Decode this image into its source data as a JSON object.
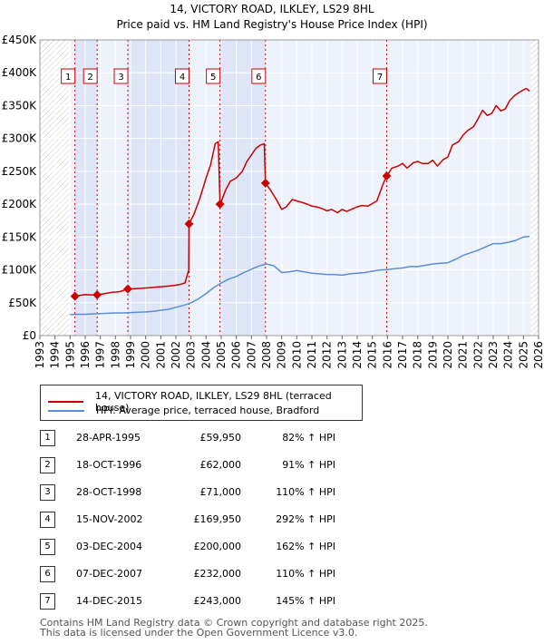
{
  "chart_data": {
    "type": "line",
    "title": "14, VICTORY ROAD, ILKLEY, LS29 8HL",
    "subtitle": "Price paid vs. HM Land Registry's House Price Index (HPI)",
    "xlim": [
      1993,
      2026
    ],
    "ylim": [
      0,
      450000
    ],
    "y_ticks": [
      0,
      50000,
      100000,
      150000,
      200000,
      250000,
      300000,
      350000,
      400000,
      450000
    ],
    "y_tick_labels": [
      "£0",
      "£50K",
      "£100K",
      "£150K",
      "£200K",
      "£250K",
      "£300K",
      "£350K",
      "£400K",
      "£450K"
    ],
    "x_ticks": [
      1993,
      1994,
      1995,
      1996,
      1997,
      1998,
      1999,
      2000,
      2001,
      2002,
      2003,
      2004,
      2005,
      2006,
      2007,
      2008,
      2009,
      2010,
      2011,
      2012,
      2013,
      2014,
      2015,
      2016,
      2017,
      2018,
      2019,
      2020,
      2021,
      2022,
      2023,
      2024,
      2025,
      2026
    ],
    "x_tick_labels": [
      "1993",
      "1994",
      "1995",
      "1996",
      "1997",
      "1998",
      "1999",
      "2000",
      "2001",
      "2002",
      "2003",
      "2004",
      "2005",
      "2006",
      "2007",
      "2008",
      "2009",
      "2010",
      "2011",
      "2012",
      "2013",
      "2014",
      "2015",
      "2016",
      "2017",
      "2018",
      "2019",
      "2020",
      "2021",
      "2022",
      "2023",
      "2024",
      "2025",
      "2026"
    ],
    "data_start": 1995.0,
    "data_end": 2025.5,
    "series": [
      {
        "name": "14, VICTORY ROAD, ILKLEY, LS29 8HL (terraced house)",
        "color": "#cc0000",
        "x": [
          1995.32,
          1995.6,
          1996.0,
          1996.4,
          1996.79,
          1997.3,
          1997.8,
          1998.3,
          1998.82,
          1999.3,
          1999.8,
          2000.3,
          2000.8,
          2001.3,
          2001.8,
          2002.3,
          2002.6,
          2002.85,
          2002.87,
          2003.2,
          2003.6,
          2004.0,
          2004.3,
          2004.6,
          2004.8,
          2004.92,
          2005.1,
          2005.3,
          2005.6,
          2006.0,
          2006.4,
          2006.7,
          2007.0,
          2007.3,
          2007.6,
          2007.85,
          2007.93,
          2008.3,
          2008.7,
          2009.0,
          2009.3,
          2009.7,
          2010.0,
          2010.3,
          2010.7,
          2011.0,
          2011.3,
          2011.7,
          2012.0,
          2012.3,
          2012.7,
          2013.0,
          2013.3,
          2013.7,
          2014.0,
          2014.3,
          2014.7,
          2015.0,
          2015.3,
          2015.7,
          2015.95,
          2016.3,
          2016.7,
          2017.0,
          2017.3,
          2017.7,
          2018.0,
          2018.3,
          2018.7,
          2019.0,
          2019.3,
          2019.7,
          2020.0,
          2020.3,
          2020.7,
          2021.0,
          2021.3,
          2021.7,
          2022.0,
          2022.3,
          2022.6,
          2022.9,
          2023.2,
          2023.5,
          2023.8,
          2024.1,
          2024.4,
          2024.7,
          2025.0,
          2025.2,
          2025.4
        ],
        "values": [
          59950,
          61000,
          62500,
          62000,
          62000,
          64000,
          66000,
          67000,
          71000,
          71500,
          72000,
          73000,
          74000,
          75000,
          76000,
          78000,
          80000,
          100000,
          169950,
          185000,
          210000,
          240000,
          260000,
          292000,
          295000,
          200000,
          210000,
          222000,
          235000,
          240000,
          250000,
          265000,
          275000,
          285000,
          290000,
          292000,
          232000,
          220000,
          205000,
          192000,
          196000,
          207000,
          205000,
          203000,
          200000,
          197000,
          196000,
          193000,
          190000,
          192000,
          187000,
          192000,
          189000,
          193000,
          196000,
          198000,
          197000,
          201000,
          205000,
          230000,
          243000,
          255000,
          258000,
          262000,
          255000,
          263000,
          265000,
          262000,
          262000,
          267000,
          258000,
          268000,
          272000,
          290000,
          295000,
          305000,
          312000,
          318000,
          330000,
          343000,
          335000,
          338000,
          350000,
          342000,
          345000,
          358000,
          365000,
          370000,
          374000,
          376000,
          372000
        ]
      },
      {
        "name": "HPI: Average price, terraced house, Bradford",
        "color": "#5b8ed6",
        "x": [
          1995.0,
          1995.5,
          1996.0,
          1996.5,
          1997.0,
          1997.5,
          1998.0,
          1998.5,
          1999.0,
          1999.5,
          2000.0,
          2000.5,
          2001.0,
          2001.5,
          2002.0,
          2002.5,
          2003.0,
          2003.5,
          2004.0,
          2004.5,
          2005.0,
          2005.5,
          2006.0,
          2006.5,
          2007.0,
          2007.5,
          2008.0,
          2008.5,
          2009.0,
          2009.5,
          2010.0,
          2010.5,
          2011.0,
          2011.5,
          2012.0,
          2012.5,
          2013.0,
          2013.5,
          2014.0,
          2014.5,
          2015.0,
          2015.5,
          2016.0,
          2016.5,
          2017.0,
          2017.5,
          2018.0,
          2018.5,
          2019.0,
          2019.5,
          2020.0,
          2020.5,
          2021.0,
          2021.5,
          2022.0,
          2022.5,
          2023.0,
          2023.5,
          2024.0,
          2024.5,
          2025.0,
          2025.4
        ],
        "values": [
          32000,
          32500,
          32500,
          33000,
          33500,
          34000,
          34500,
          34500,
          35000,
          35500,
          36000,
          37000,
          38500,
          40000,
          43000,
          46000,
          50000,
          56000,
          64000,
          73000,
          80000,
          86000,
          90000,
          96000,
          101000,
          106000,
          109000,
          106000,
          96000,
          97000,
          99000,
          97000,
          95000,
          94000,
          93000,
          93000,
          92000,
          94000,
          95000,
          96000,
          98000,
          100000,
          100500,
          102000,
          103000,
          105000,
          105000,
          107000,
          109000,
          110000,
          111000,
          116000,
          122000,
          126000,
          130000,
          135000,
          140000,
          140000,
          142000,
          145000,
          150000,
          151000
        ]
      }
    ],
    "sales": [
      {
        "x": 1995.32,
        "value": 59950,
        "label": "1"
      },
      {
        "x": 1996.79,
        "value": 62000,
        "label": "2"
      },
      {
        "x": 1998.82,
        "value": 71000,
        "label": "3"
      },
      {
        "x": 2002.87,
        "value": 169950,
        "label": "4"
      },
      {
        "x": 2004.92,
        "value": 200000,
        "label": "5"
      },
      {
        "x": 2007.93,
        "value": 232000,
        "label": "6"
      },
      {
        "x": 2015.95,
        "value": 243000,
        "label": "7"
      }
    ]
  },
  "legend": {
    "property_label": "14, VICTORY ROAD, ILKLEY, LS29 8HL (terraced house)",
    "hpi_label": "HPI: Average price, terraced house, Bradford",
    "property_color": "#cc0000",
    "hpi_color": "#5b8ed6"
  },
  "sales_table": [
    {
      "num": "1",
      "date": "28-APR-1995",
      "price": "£59,950",
      "hpi": "82% ↑ HPI"
    },
    {
      "num": "2",
      "date": "18-OCT-1996",
      "price": "£62,000",
      "hpi": "91% ↑ HPI"
    },
    {
      "num": "3",
      "date": "28-OCT-1998",
      "price": "£71,000",
      "hpi": "110% ↑ HPI"
    },
    {
      "num": "4",
      "date": "15-NOV-2002",
      "price": "£169,950",
      "hpi": "292% ↑ HPI"
    },
    {
      "num": "5",
      "date": "03-DEC-2004",
      "price": "£200,000",
      "hpi": "162% ↑ HPI"
    },
    {
      "num": "6",
      "date": "07-DEC-2007",
      "price": "£232,000",
      "hpi": "110% ↑ HPI"
    },
    {
      "num": "7",
      "date": "14-DEC-2015",
      "price": "£243,000",
      "hpi": "145% ↑ HPI"
    }
  ],
  "footer": {
    "line1": "Contains HM Land Registry data © Crown copyright and database right 2025.",
    "line2": "This data is licensed under the Open Government Licence v3.0."
  }
}
